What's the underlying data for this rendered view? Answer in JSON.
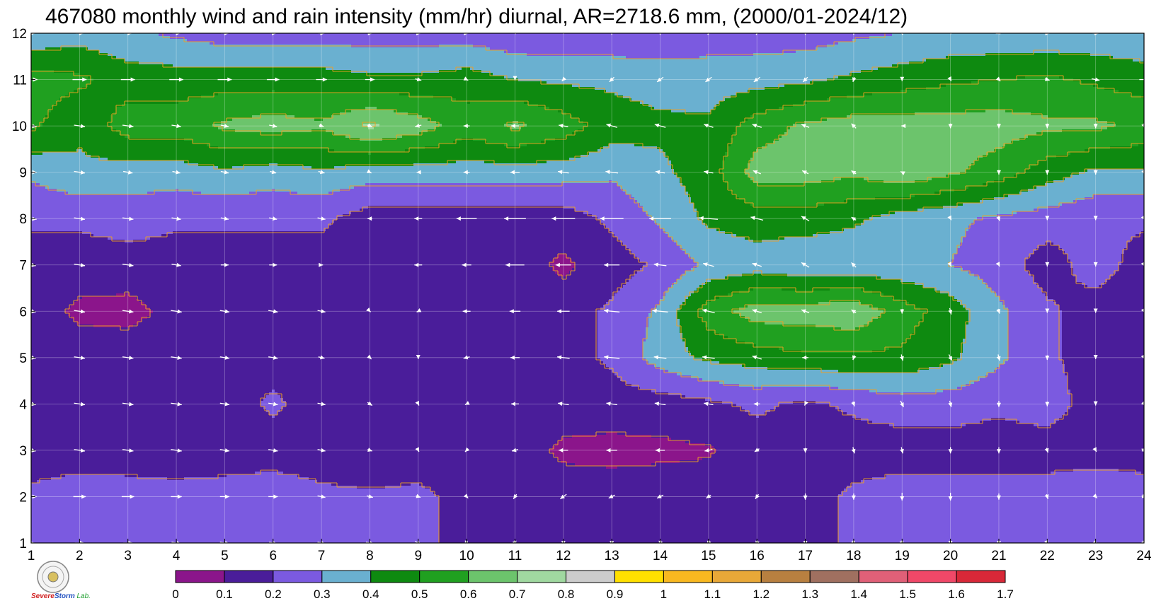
{
  "title": "467080 monthly wind and rain intensity (mm/hr) diurnal, AR=2718.6 mm, (2000/01-2024/12)",
  "logo": {
    "line1": "Severe",
    "line2": "Storm",
    "line3": "Lab."
  },
  "chart_data": {
    "type": "heatmap",
    "subtype": "filled-contour-with-wind-vectors",
    "title": "467080 monthly wind and rain intensity (mm/hr) diurnal, AR=2718.6 mm, (2000/01-2024/12)",
    "xlabel": "",
    "ylabel": "",
    "x_ticks": [
      1,
      2,
      3,
      4,
      5,
      6,
      7,
      8,
      9,
      10,
      11,
      12,
      13,
      14,
      15,
      16,
      17,
      18,
      19,
      20,
      21,
      22,
      23,
      24
    ],
    "y_ticks": [
      1,
      2,
      3,
      4,
      5,
      6,
      7,
      8,
      9,
      10,
      11,
      12
    ],
    "xlim": [
      1,
      24
    ],
    "ylim": [
      1,
      12
    ],
    "grid": true,
    "colorbar": {
      "placement": "bottom",
      "levels": [
        0,
        0.1,
        0.2,
        0.3,
        0.4,
        0.5,
        0.6,
        0.7,
        0.8,
        0.9,
        1,
        1.1,
        1.2,
        1.3,
        1.4,
        1.5,
        1.6,
        1.7
      ],
      "level_labels": [
        "0",
        "0.1",
        "0.2",
        "0.3",
        "0.4",
        "0.5",
        "0.6",
        "0.7",
        "0.8",
        "0.9",
        "1",
        "1.1",
        "1.2",
        "1.3",
        "1.4",
        "1.5",
        "1.6",
        "1.7"
      ],
      "colors": [
        "#8b158b",
        "#4a1d9a",
        "#7b5ae0",
        "#6ab0d0",
        "#0e8a10",
        "#20a020",
        "#6cc46c",
        "#a0d8a0",
        "#cccccc",
        "#ffe000",
        "#f8b820",
        "#e8a838",
        "#b88040",
        "#a07060",
        "#e06078",
        "#f04868",
        "#d82838"
      ]
    },
    "intensity": [
      [
        0.22,
        0.25,
        0.24,
        0.23,
        0.24,
        0.26,
        0.22,
        0.21,
        0.22,
        0.17,
        0.15,
        0.15,
        0.15,
        0.15,
        0.15,
        0.15,
        0.16,
        0.22,
        0.25,
        0.25,
        0.25,
        0.25,
        0.25,
        0.25
      ],
      [
        0.22,
        0.25,
        0.24,
        0.23,
        0.24,
        0.26,
        0.22,
        0.21,
        0.22,
        0.17,
        0.15,
        0.15,
        0.15,
        0.15,
        0.15,
        0.15,
        0.16,
        0.22,
        0.25,
        0.25,
        0.25,
        0.25,
        0.28,
        0.25
      ],
      [
        0.15,
        0.15,
        0.15,
        0.15,
        0.15,
        0.15,
        0.15,
        0.15,
        0.15,
        0.15,
        0.15,
        0.08,
        0.07,
        0.08,
        0.09,
        0.15,
        0.15,
        0.15,
        0.15,
        0.15,
        0.15,
        0.15,
        0.15,
        0.15
      ],
      [
        0.15,
        0.15,
        0.15,
        0.15,
        0.15,
        0.22,
        0.15,
        0.15,
        0.15,
        0.15,
        0.15,
        0.15,
        0.15,
        0.15,
        0.18,
        0.22,
        0.18,
        0.22,
        0.25,
        0.25,
        0.22,
        0.25,
        0.15,
        0.15
      ],
      [
        0.15,
        0.15,
        0.15,
        0.15,
        0.15,
        0.15,
        0.15,
        0.15,
        0.15,
        0.15,
        0.15,
        0.15,
        0.22,
        0.35,
        0.42,
        0.45,
        0.48,
        0.48,
        0.48,
        0.42,
        0.32,
        0.22,
        0.15,
        0.15
      ],
      [
        0.15,
        0.08,
        0.07,
        0.13,
        0.15,
        0.15,
        0.12,
        0.15,
        0.15,
        0.15,
        0.15,
        0.15,
        0.22,
        0.32,
        0.55,
        0.65,
        0.65,
        0.68,
        0.55,
        0.45,
        0.32,
        0.22,
        0.15,
        0.15
      ],
      [
        0.15,
        0.15,
        0.15,
        0.15,
        0.15,
        0.15,
        0.15,
        0.15,
        0.15,
        0.15,
        0.15,
        0.08,
        0.15,
        0.22,
        0.32,
        0.35,
        0.32,
        0.32,
        0.32,
        0.3,
        0.25,
        0.15,
        0.25,
        0.15
      ],
      [
        0.22,
        0.22,
        0.25,
        0.22,
        0.22,
        0.22,
        0.22,
        0.15,
        0.15,
        0.15,
        0.15,
        0.15,
        0.22,
        0.32,
        0.42,
        0.45,
        0.45,
        0.42,
        0.35,
        0.32,
        0.28,
        0.25,
        0.22,
        0.22
      ],
      [
        0.32,
        0.38,
        0.35,
        0.35,
        0.38,
        0.35,
        0.38,
        0.35,
        0.35,
        0.35,
        0.35,
        0.35,
        0.32,
        0.38,
        0.45,
        0.65,
        0.65,
        0.62,
        0.68,
        0.62,
        0.55,
        0.45,
        0.38,
        0.38
      ],
      [
        0.52,
        0.42,
        0.55,
        0.55,
        0.62,
        0.65,
        0.62,
        0.72,
        0.65,
        0.55,
        0.62,
        0.55,
        0.45,
        0.42,
        0.42,
        0.55,
        0.62,
        0.65,
        0.65,
        0.65,
        0.65,
        0.62,
        0.62,
        0.58
      ],
      [
        0.55,
        0.52,
        0.45,
        0.45,
        0.45,
        0.45,
        0.45,
        0.42,
        0.42,
        0.45,
        0.4,
        0.38,
        0.38,
        0.36,
        0.35,
        0.36,
        0.38,
        0.42,
        0.45,
        0.48,
        0.5,
        0.52,
        0.48,
        0.45
      ],
      [
        0.32,
        0.35,
        0.32,
        0.28,
        0.25,
        0.25,
        0.25,
        0.25,
        0.25,
        0.25,
        0.22,
        0.22,
        0.22,
        0.22,
        0.25,
        0.25,
        0.25,
        0.28,
        0.3,
        0.32,
        0.32,
        0.32,
        0.33,
        0.32
      ]
    ],
    "wind_vectors": {
      "units": "unitless (relative)",
      "u": [
        [
          0.4,
          0.6,
          0.6,
          0.6,
          0.6,
          0.5,
          0.5,
          0.5,
          0.4,
          0.2,
          0.1,
          0.0,
          0.0,
          -0.1,
          -0.1,
          -0.1,
          0.0,
          0.1,
          0.1,
          0.0,
          0.0,
          0.1,
          0.3,
          0.3
        ],
        [
          0.7,
          0.8,
          0.8,
          0.7,
          0.6,
          0.6,
          0.5,
          0.4,
          0.3,
          0.2,
          -0.2,
          -0.4,
          -0.4,
          -0.4,
          -0.3,
          -0.2,
          0.0,
          0.0,
          0.0,
          0.0,
          0.0,
          0.1,
          0.2,
          0.3
        ],
        [
          0.6,
          0.7,
          0.7,
          0.7,
          0.6,
          0.6,
          0.5,
          0.3,
          0.1,
          -0.2,
          -0.4,
          -0.6,
          -0.7,
          -0.6,
          -0.5,
          -0.3,
          0.0,
          0.1,
          0.1,
          0.0,
          0.0,
          0.1,
          0.1,
          0.3
        ],
        [
          0.6,
          0.7,
          0.7,
          0.7,
          0.6,
          0.6,
          0.5,
          0.3,
          0.1,
          -0.2,
          -0.5,
          -0.7,
          -0.7,
          -0.7,
          -0.6,
          -0.4,
          -0.1,
          0.1,
          0.2,
          0.1,
          0.0,
          0.0,
          0.0,
          0.2
        ],
        [
          0.6,
          0.7,
          0.7,
          0.7,
          0.6,
          0.6,
          0.4,
          0.2,
          0.0,
          -0.4,
          -0.6,
          -0.8,
          -1.0,
          -0.8,
          -0.8,
          -0.6,
          -0.4,
          -0.1,
          0.1,
          0.2,
          0.1,
          0.0,
          0.0,
          0.1
        ],
        [
          0.6,
          0.7,
          0.7,
          0.7,
          0.6,
          0.6,
          0.5,
          0.1,
          -0.2,
          -0.5,
          -0.7,
          -0.8,
          -1.0,
          -1.0,
          -0.8,
          -0.6,
          -0.5,
          -0.3,
          0.0,
          0.1,
          0.1,
          0.0,
          0.0,
          0.1
        ],
        [
          0.6,
          0.7,
          0.7,
          0.6,
          0.5,
          0.5,
          0.2,
          0.0,
          -0.5,
          -0.6,
          -1.2,
          -1.0,
          -1.0,
          -0.8,
          -0.7,
          -0.6,
          -0.5,
          -0.3,
          0.0,
          0.1,
          0.1,
          0.0,
          0.0,
          0.1
        ],
        [
          0.7,
          0.7,
          0.7,
          0.6,
          0.5,
          0.5,
          0.5,
          -0.3,
          -0.5,
          -1.3,
          -1.4,
          -1.5,
          -1.5,
          -1.4,
          -1.2,
          -0.8,
          -0.5,
          -0.3,
          0.0,
          0.1,
          0.1,
          0.0,
          0.0,
          0.1
        ],
        [
          0.7,
          0.7,
          0.6,
          0.5,
          0.5,
          0.4,
          0.4,
          0.2,
          -0.2,
          -0.4,
          -0.6,
          -0.7,
          -0.8,
          -0.6,
          -0.6,
          -0.5,
          -0.4,
          -0.3,
          -0.2,
          0.0,
          0.0,
          0.0,
          0.0,
          0.1
        ],
        [
          0.7,
          0.7,
          0.7,
          0.6,
          0.5,
          0.5,
          0.3,
          0.3,
          -0.4,
          -0.4,
          -0.5,
          -0.6,
          -0.7,
          -0.7,
          -0.6,
          -0.6,
          -0.5,
          -0.3,
          -0.1,
          0.0,
          0.0,
          0.0,
          0.0,
          0.1
        ],
        [
          0.8,
          0.9,
          0.9,
          0.9,
          0.9,
          0.8,
          0.7,
          0.6,
          0.4,
          0.2,
          0.0,
          -0.2,
          -0.3,
          -0.4,
          -0.4,
          -0.4,
          -0.3,
          -0.1,
          0.0,
          0.1,
          0.2,
          0.3,
          0.5,
          0.6
        ],
        [
          0.5,
          0.5,
          0.5,
          0.5,
          0.5,
          0.4,
          0.4,
          0.3,
          0.3,
          0.2,
          0.1,
          0.0,
          0.0,
          0.0,
          -0.1,
          -0.1,
          0.0,
          0.0,
          0.1,
          0.1,
          0.2,
          0.3,
          0.4,
          0.5
        ]
      ],
      "v": [
        [
          0.0,
          0.0,
          0.0,
          -0.1,
          -0.1,
          -0.1,
          -0.1,
          -0.1,
          -0.2,
          -0.3,
          -0.3,
          -0.3,
          -0.3,
          -0.3,
          -0.3,
          -0.3,
          -0.3,
          -0.3,
          -0.3,
          -0.3,
          -0.3,
          -0.2,
          -0.1,
          -0.1
        ],
        [
          0.0,
          0.0,
          0.0,
          0.0,
          0.0,
          0.0,
          -0.1,
          -0.1,
          -0.1,
          -0.2,
          -0.3,
          -0.3,
          -0.2,
          -0.2,
          -0.2,
          -0.3,
          -0.4,
          -0.4,
          -0.5,
          -0.5,
          -0.4,
          -0.3,
          -0.2,
          -0.1
        ],
        [
          -0.1,
          -0.1,
          -0.1,
          -0.1,
          -0.1,
          -0.1,
          -0.1,
          -0.1,
          -0.2,
          -0.2,
          -0.1,
          0.0,
          0.0,
          0.0,
          -0.1,
          -0.2,
          -0.3,
          -0.4,
          -0.4,
          -0.4,
          -0.4,
          -0.3,
          -0.2,
          -0.2
        ],
        [
          -0.1,
          -0.1,
          -0.1,
          -0.1,
          -0.1,
          -0.1,
          -0.1,
          -0.2,
          -0.2,
          -0.1,
          0.0,
          0.1,
          0.1,
          0.1,
          0.1,
          0.0,
          -0.2,
          -0.3,
          -0.4,
          -0.4,
          -0.4,
          -0.3,
          -0.2,
          -0.2
        ],
        [
          -0.1,
          -0.1,
          -0.1,
          -0.1,
          -0.1,
          -0.1,
          -0.1,
          -0.2,
          -0.2,
          -0.1,
          0.0,
          0.1,
          0.1,
          0.1,
          0.1,
          0.2,
          0.0,
          -0.3,
          -0.4,
          -0.4,
          -0.4,
          -0.3,
          -0.2,
          -0.2
        ],
        [
          -0.1,
          -0.1,
          -0.1,
          -0.1,
          -0.1,
          -0.1,
          -0.1,
          -0.1,
          -0.1,
          0.0,
          0.0,
          0.0,
          0.1,
          0.1,
          0.2,
          0.2,
          0.2,
          0.2,
          -0.3,
          -0.4,
          -0.3,
          -0.2,
          -0.2,
          -0.2
        ],
        [
          -0.1,
          -0.1,
          -0.1,
          -0.1,
          0.0,
          0.0,
          0.0,
          0.0,
          0.0,
          0.0,
          0.0,
          0.0,
          0.0,
          0.1,
          0.2,
          0.2,
          0.3,
          0.3,
          0.0,
          -0.2,
          -0.2,
          -0.2,
          -0.2,
          -0.2
        ],
        [
          -0.1,
          -0.1,
          -0.1,
          -0.1,
          -0.1,
          -0.1,
          -0.1,
          0.0,
          0.0,
          0.0,
          0.0,
          0.0,
          0.0,
          0.0,
          0.1,
          0.2,
          0.3,
          0.2,
          0.0,
          -0.2,
          -0.3,
          -0.2,
          -0.2,
          -0.2
        ],
        [
          0.0,
          -0.1,
          -0.1,
          -0.1,
          -0.1,
          -0.1,
          -0.1,
          -0.1,
          0.0,
          0.0,
          0.0,
          0.1,
          0.1,
          0.1,
          0.1,
          0.2,
          0.2,
          0.2,
          0.1,
          0.0,
          -0.3,
          -0.3,
          -0.3,
          -0.3
        ],
        [
          -0.1,
          -0.1,
          -0.1,
          -0.1,
          -0.1,
          -0.1,
          -0.1,
          -0.1,
          -0.1,
          0.0,
          0.0,
          0.1,
          0.2,
          0.2,
          0.2,
          0.2,
          0.2,
          0.3,
          0.0,
          -0.3,
          -0.3,
          -0.3,
          -0.3,
          -0.3
        ],
        [
          0.0,
          0.0,
          0.0,
          0.0,
          0.0,
          0.0,
          0.0,
          0.0,
          -0.1,
          -0.1,
          -0.1,
          -0.2,
          -0.3,
          -0.3,
          -0.3,
          -0.3,
          -0.3,
          -0.3,
          -0.2,
          -0.2,
          -0.2,
          -0.1,
          -0.1,
          0.0
        ],
        [
          0.0,
          0.0,
          0.0,
          0.0,
          0.0,
          0.0,
          0.0,
          0.0,
          0.0,
          0.0,
          -0.1,
          -0.1,
          -0.2,
          -0.2,
          -0.2,
          -0.2,
          -0.2,
          -0.2,
          -0.2,
          -0.1,
          -0.1,
          0.0,
          0.0,
          0.0
        ]
      ]
    }
  }
}
